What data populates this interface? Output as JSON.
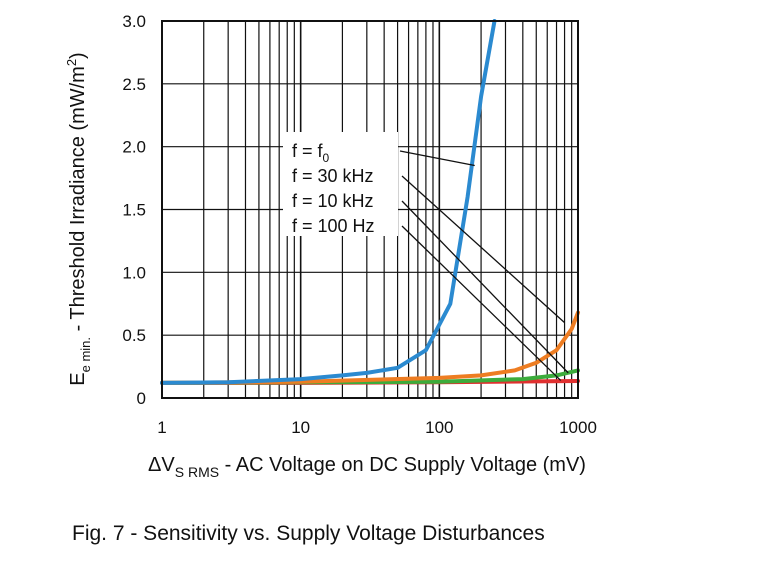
{
  "caption": "Fig. 7 - Sensitivity vs. Supply Voltage Disturbances",
  "chart_data": {
    "type": "line",
    "title": "",
    "x_scale": "log",
    "xlim": [
      1,
      1000
    ],
    "ylim": [
      0,
      3.0
    ],
    "grid": true,
    "xlabel": {
      "prefix": "ΔV",
      "subscript": "S RMS",
      "suffix": " - AC Voltage on DC Supply Voltage (mV)"
    },
    "ylabel": {
      "prefix": "E",
      "subscript": "e min.",
      "suffix": " - Threshold Irradiance (mW/m",
      "superscript": "2",
      "close": ")"
    },
    "x_ticks": [
      {
        "value": 1,
        "label": "1"
      },
      {
        "value": 10,
        "label": "10"
      },
      {
        "value": 100,
        "label": "100"
      },
      {
        "value": 1000,
        "label": "1000"
      }
    ],
    "y_ticks": [
      {
        "value": 0,
        "label": "0"
      },
      {
        "value": 0.5,
        "label": "0.5"
      },
      {
        "value": 1.0,
        "label": "1.0"
      },
      {
        "value": 1.5,
        "label": "1.5"
      },
      {
        "value": 2.0,
        "label": "2.0"
      },
      {
        "value": 2.5,
        "label": "2.5"
      },
      {
        "value": 3.0,
        "label": "3.0"
      }
    ],
    "series": [
      {
        "label_parts": [
          "f = f",
          "0",
          ""
        ],
        "color": "#2b8ad0",
        "x": [
          1,
          3,
          10,
          20,
          30,
          50,
          80,
          120,
          160,
          200,
          250
        ],
        "y": [
          0.12,
          0.125,
          0.15,
          0.18,
          0.2,
          0.24,
          0.38,
          0.75,
          1.6,
          2.4,
          3.0
        ],
        "leader_to": {
          "x": 180,
          "y": 1.85
        }
      },
      {
        "label_parts": [
          "f = 30 kHz"
        ],
        "color": "#ee7d22",
        "x": [
          1,
          10,
          100,
          200,
          350,
          500,
          700,
          900,
          1000
        ],
        "y": [
          0.12,
          0.13,
          0.16,
          0.18,
          0.22,
          0.28,
          0.38,
          0.55,
          0.68
        ],
        "leader_to": {
          "x": 800,
          "y": 0.6
        }
      },
      {
        "label_parts": [
          "f = 10 kHz"
        ],
        "color": "#3cac3c",
        "x": [
          1,
          10,
          100,
          400,
          700,
          1000
        ],
        "y": [
          0.12,
          0.125,
          0.13,
          0.15,
          0.18,
          0.22
        ],
        "leader_to": {
          "x": 850,
          "y": 0.2
        }
      },
      {
        "label_parts": [
          "f = 100 Hz"
        ],
        "color": "#e03030",
        "x": [
          1,
          10,
          100,
          1000
        ],
        "y": [
          0.12,
          0.12,
          0.125,
          0.135
        ],
        "leader_to": {
          "x": 750,
          "y": 0.14
        }
      }
    ]
  }
}
